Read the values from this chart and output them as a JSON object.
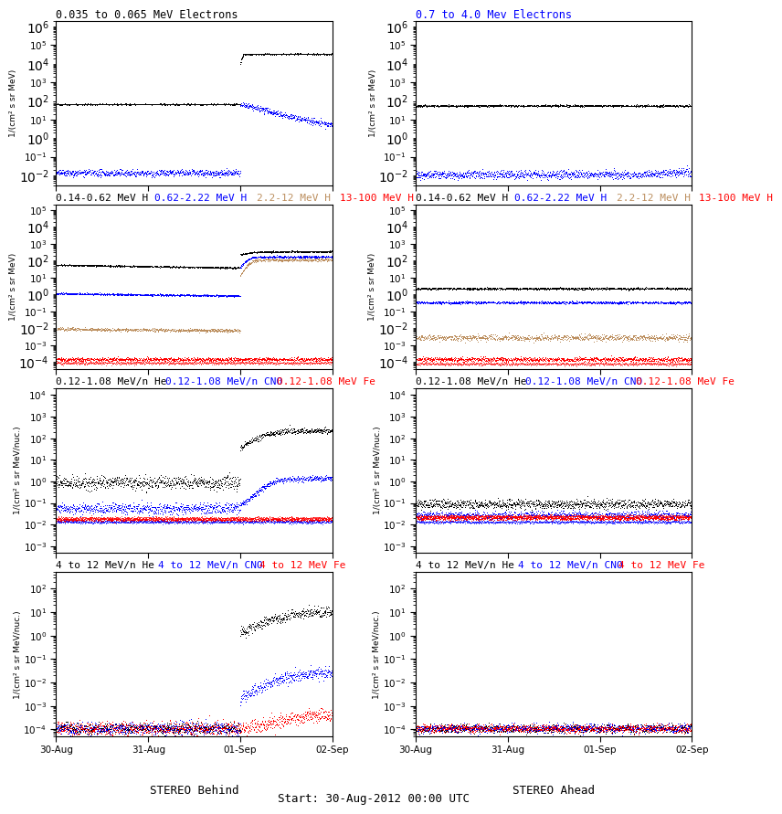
{
  "panel_titles": [
    [
      "0.035 to 0.065 MeV Electrons",
      "0.7 to 4.0 Mev Electrons"
    ],
    [
      "0.14-0.62 MeV H|black  0.62-2.22 MeV H|blue  2.2-12 MeV H|brown  13-100 MeV H|red",
      "0.14-0.62 MeV H|black  0.62-2.22 MeV H|blue  2.2-12 MeV H|brown  13-100 MeV H|red"
    ],
    [
      "0.12-1.08 MeV/n He|black  0.12-1.08 MeV/n CNO|blue  0.12-1.08 MeV Fe|red",
      "0.12-1.08 MeV/n He|black  0.12-1.08 MeV/n CNO|blue  0.12-1.08 MeV Fe|red"
    ],
    [
      "4 to 12 MeV/n He|black  4 to 12 MeV/n CNO|blue  4 to 12 MeV Fe|red",
      "4 to 12 MeV/n He|black  4 to 12 MeV/n CNO|blue  4 to 12 MeV Fe|red"
    ]
  ],
  "row0_title_left": "0.035 to 0.065 MeV Electrons",
  "row0_title_right": "0.7 to 4.0 Mev Electrons",
  "row1_titles_left": [
    "0.14-0.62 MeV H",
    "0.62-2.22 MeV H",
    "2.2-12 MeV H",
    "13-100 MeV H"
  ],
  "row1_titles_left_colors": [
    "black",
    "blue",
    "#BC8F5F",
    "red"
  ],
  "row1_titles_right": [
    "0.14-0.62 MeV H",
    "0.62-2.22 MeV H",
    "2.2-12 MeV H",
    "13-100 MeV H"
  ],
  "row1_titles_right_colors": [
    "black",
    "blue",
    "#BC8F5F",
    "red"
  ],
  "row2_titles_left": [
    "0.12-1.08 MeV/n He",
    "0.12-1.08 MeV/n CNO",
    "0.12-1.08 MeV Fe"
  ],
  "row2_titles_left_colors": [
    "black",
    "blue",
    "red"
  ],
  "row2_titles_right": [
    "0.12-1.08 MeV/n He",
    "0.12-1.08 MeV/n CNO",
    "0.12-1.08 MeV Fe"
  ],
  "row2_titles_right_colors": [
    "black",
    "blue",
    "red"
  ],
  "row3_titles_left": [
    "4 to 12 MeV/n He",
    "4 to 12 MeV/n CNO",
    "4 to 12 MeV Fe"
  ],
  "row3_titles_left_colors": [
    "black",
    "blue",
    "red"
  ],
  "row3_titles_right": [
    "4 to 12 MeV/n He",
    "4 to 12 MeV/n CNO",
    "4 to 12 MeV Fe"
  ],
  "row3_titles_right_colors": [
    "black",
    "blue",
    "red"
  ],
  "xlabel_left": "STEREO Behind",
  "xlabel_center": "Start: 30-Aug-2012 00:00 UTC",
  "xlabel_right": "STEREO Ahead",
  "xtick_labels": [
    "30-Aug",
    "31-Aug",
    "01-Sep",
    "02-Sep"
  ],
  "ylabel_electrons": "1/(cm² s sr MeV)",
  "ylabel_H": "1/(cm² s sr MeV)",
  "ylabel_heavy": "1/(cm² s sr MeV/nuc.)",
  "brown_color": "#BC8F5F",
  "seed": 42
}
